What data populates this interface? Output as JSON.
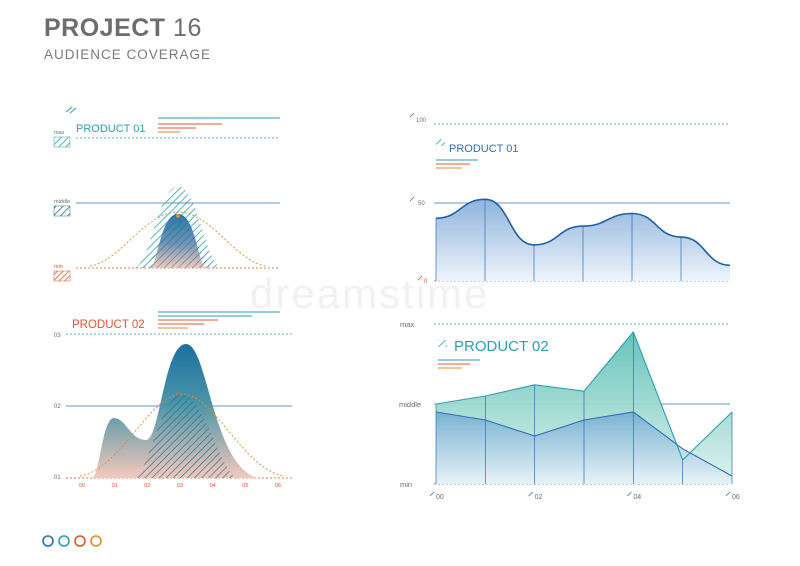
{
  "header": {
    "title_bold": "PROJECT",
    "title_num": "16",
    "subtitle": "AUDIENCE COVERAGE"
  },
  "colors": {
    "teal": "#2a9fb0",
    "blue": "#2f6fb0",
    "orange": "#e0552e",
    "dark_teal": "#1d6e86",
    "grey": "#6d6d6d"
  },
  "watermark": "dreamstime",
  "footer": {
    "dot_colors": [
      "#2f6fb0",
      "#2a9fb0",
      "#e0552e",
      "#e08a2e"
    ]
  },
  "chart_data": [
    {
      "type": "area",
      "title": "PRODUCT 01",
      "levels": [
        "max",
        "middle",
        "min"
      ],
      "description": "bell-shaped distribution curve"
    },
    {
      "type": "area",
      "title": "PRODUCT 02",
      "y_levels": [
        "03",
        "02",
        "01"
      ],
      "x_ticks": [
        "00",
        "01",
        "02",
        "03",
        "04",
        "05",
        "06"
      ]
    },
    {
      "type": "area",
      "title": "PRODUCT 01",
      "y_ticks": [
        "100",
        "50",
        "0"
      ],
      "ylim": [
        0,
        100
      ],
      "x": [
        0,
        1,
        2,
        3,
        4,
        5,
        6
      ],
      "series": [
        {
          "values": [
            40,
            52,
            23,
            35,
            43,
            28,
            10
          ]
        }
      ]
    },
    {
      "type": "area",
      "title": "PRODUCT 02",
      "y_ticks": [
        "max",
        "middle",
        "min"
      ],
      "ylim": [
        0,
        100
      ],
      "x_ticks": [
        "00",
        "02",
        "04",
        "06"
      ],
      "x": [
        0,
        1,
        2,
        3,
        4,
        5,
        6
      ],
      "series": [
        {
          "values": [
            50,
            55,
            62,
            58,
            95,
            15,
            45
          ]
        },
        {
          "values": [
            45,
            40,
            30,
            40,
            45,
            22,
            5
          ]
        }
      ]
    }
  ]
}
